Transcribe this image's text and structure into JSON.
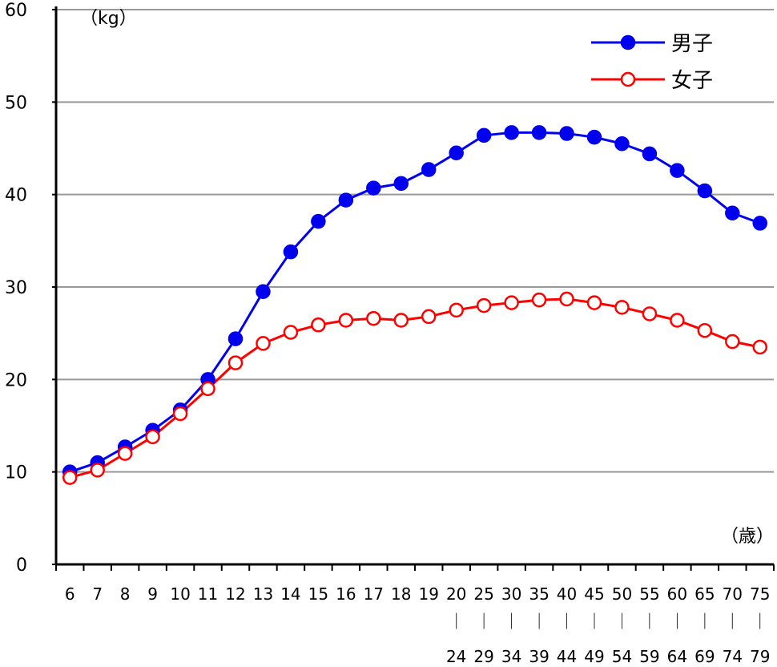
{
  "chart_data": {
    "type": "line",
    "y_unit_label": "（kg）",
    "x_unit_label": "（歳）",
    "ylim": [
      0,
      60
    ],
    "yticks": [
      "0",
      "10",
      "20",
      "30",
      "40",
      "50",
      "60"
    ],
    "grid": true,
    "legend_position": "top-right",
    "categories": [
      {
        "top": "6",
        "bottom": ""
      },
      {
        "top": "7",
        "bottom": ""
      },
      {
        "top": "8",
        "bottom": ""
      },
      {
        "top": "9",
        "bottom": ""
      },
      {
        "top": "10",
        "bottom": ""
      },
      {
        "top": "11",
        "bottom": ""
      },
      {
        "top": "12",
        "bottom": ""
      },
      {
        "top": "13",
        "bottom": ""
      },
      {
        "top": "14",
        "bottom": ""
      },
      {
        "top": "15",
        "bottom": ""
      },
      {
        "top": "16",
        "bottom": ""
      },
      {
        "top": "17",
        "bottom": ""
      },
      {
        "top": "18",
        "bottom": ""
      },
      {
        "top": "19",
        "bottom": ""
      },
      {
        "top": "20",
        "bottom": "24"
      },
      {
        "top": "25",
        "bottom": "29"
      },
      {
        "top": "30",
        "bottom": "34"
      },
      {
        "top": "35",
        "bottom": "39"
      },
      {
        "top": "40",
        "bottom": "44"
      },
      {
        "top": "45",
        "bottom": "49"
      },
      {
        "top": "50",
        "bottom": "54"
      },
      {
        "top": "55",
        "bottom": "59"
      },
      {
        "top": "60",
        "bottom": "64"
      },
      {
        "top": "65",
        "bottom": "69"
      },
      {
        "top": "70",
        "bottom": "74"
      },
      {
        "top": "75",
        "bottom": "79"
      }
    ],
    "range_separator": "｜",
    "series": [
      {
        "name": "男子",
        "color": "#0000ee",
        "marker": "filled-circle",
        "values": [
          10.0,
          11.0,
          12.7,
          14.5,
          16.7,
          20.0,
          24.4,
          29.5,
          33.8,
          37.1,
          39.4,
          40.7,
          41.2,
          42.7,
          44.5,
          46.4,
          46.7,
          46.7,
          46.6,
          46.2,
          45.5,
          44.4,
          42.6,
          40.4,
          38.0,
          36.9
        ]
      },
      {
        "name": "女子",
        "color": "#ff0000",
        "marker": "open-circle",
        "values": [
          9.4,
          10.2,
          12.0,
          13.8,
          16.3,
          19.0,
          21.8,
          23.9,
          25.1,
          25.9,
          26.4,
          26.6,
          26.4,
          26.8,
          27.5,
          28.0,
          28.3,
          28.6,
          28.7,
          28.3,
          27.8,
          27.1,
          26.4,
          25.3,
          24.1,
          23.5
        ]
      }
    ]
  }
}
